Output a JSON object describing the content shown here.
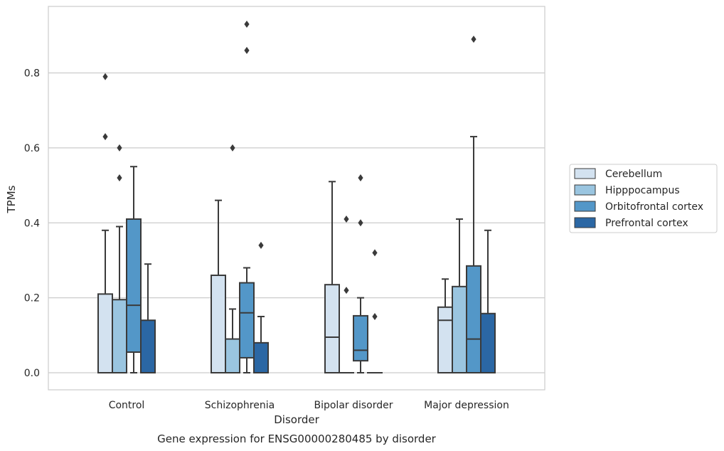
{
  "chart_data": {
    "type": "box",
    "caption": "Gene expression for ENSG00000280485 by disorder",
    "xlabel": "Disorder",
    "ylabel": "TPMs",
    "ylim": [
      -0.045,
      0.98
    ],
    "yticks": [
      0.0,
      0.2,
      0.4,
      0.6,
      0.8
    ],
    "ytick_labels": [
      "0.0",
      "0.2",
      "0.4",
      "0.6",
      "0.8"
    ],
    "grid": "horizontal",
    "legend_position": "right",
    "categories": [
      "Control",
      "Schizophrenia",
      "Bipolar disorder",
      "Major depression"
    ],
    "series": [
      {
        "name": "Cerebellum",
        "color": "#d3e2f0",
        "boxes": [
          {
            "q1": 0.0,
            "median": 0.0,
            "q3": 0.21,
            "whisker_low": 0.0,
            "whisker_high": 0.38,
            "outliers": [
              0.63,
              0.79
            ]
          },
          {
            "q1": 0.0,
            "median": 0.0,
            "q3": 0.26,
            "whisker_low": 0.0,
            "whisker_high": 0.46,
            "outliers": []
          },
          {
            "q1": 0.0,
            "median": 0.095,
            "q3": 0.235,
            "whisker_low": 0.0,
            "whisker_high": 0.51,
            "outliers": []
          },
          {
            "q1": 0.0,
            "median": 0.14,
            "q3": 0.175,
            "whisker_low": 0.0,
            "whisker_high": 0.25,
            "outliers": []
          }
        ]
      },
      {
        "name": "Hipppocampus",
        "color": "#9ac5e0",
        "boxes": [
          {
            "q1": 0.0,
            "median": 0.0,
            "q3": 0.195,
            "whisker_low": 0.0,
            "whisker_high": 0.39,
            "outliers": [
              0.52,
              0.6
            ]
          },
          {
            "q1": 0.0,
            "median": 0.0,
            "q3": 0.09,
            "whisker_low": 0.0,
            "whisker_high": 0.17,
            "outliers": [
              0.6
            ]
          },
          {
            "q1": 0.0,
            "median": 0.0,
            "q3": 0.0,
            "whisker_low": 0.0,
            "whisker_high": 0.0,
            "outliers": [
              0.22,
              0.41
            ]
          },
          {
            "q1": 0.0,
            "median": 0.0,
            "q3": 0.23,
            "whisker_low": 0.0,
            "whisker_high": 0.41,
            "outliers": []
          }
        ]
      },
      {
        "name": "Orbitofrontal cortex",
        "color": "#5397c8",
        "boxes": [
          {
            "q1": 0.055,
            "median": 0.18,
            "q3": 0.41,
            "whisker_low": 0.0,
            "whisker_high": 0.55,
            "outliers": []
          },
          {
            "q1": 0.04,
            "median": 0.16,
            "q3": 0.24,
            "whisker_low": 0.0,
            "whisker_high": 0.28,
            "outliers": [
              0.86,
              0.93
            ]
          },
          {
            "q1": 0.032,
            "median": 0.06,
            "q3": 0.152,
            "whisker_low": 0.0,
            "whisker_high": 0.2,
            "outliers": [
              0.4,
              0.52
            ]
          },
          {
            "q1": 0.0,
            "median": 0.09,
            "q3": 0.285,
            "whisker_low": 0.0,
            "whisker_high": 0.63,
            "outliers": [
              0.89
            ]
          }
        ]
      },
      {
        "name": "Prefrontal cortex",
        "color": "#2b67a4",
        "boxes": [
          {
            "q1": 0.0,
            "median": 0.0,
            "q3": 0.14,
            "whisker_low": 0.0,
            "whisker_high": 0.29,
            "outliers": []
          },
          {
            "q1": 0.0,
            "median": 0.0,
            "q3": 0.08,
            "whisker_low": 0.0,
            "whisker_high": 0.15,
            "outliers": [
              0.34
            ]
          },
          {
            "q1": 0.0,
            "median": 0.0,
            "q3": 0.0,
            "whisker_low": 0.0,
            "whisker_high": 0.0,
            "outliers": [
              0.15,
              0.32
            ]
          },
          {
            "q1": 0.0,
            "median": 0.0,
            "q3": 0.158,
            "whisker_low": 0.0,
            "whisker_high": 0.38,
            "outliers": []
          }
        ]
      }
    ]
  }
}
